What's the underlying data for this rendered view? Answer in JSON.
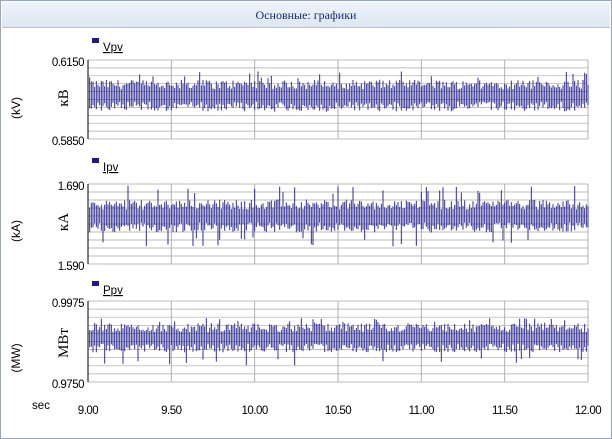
{
  "window": {
    "title": "Основные: графики"
  },
  "colors": {
    "series": "#1c1a8c",
    "grid": "#a9a9a9",
    "plot_bg": "#ffffff",
    "legend_square": "#1c1a8c"
  },
  "x_unit_label": "sec",
  "chart_data": [
    {
      "type": "line",
      "legend": "Vpv",
      "ylabel": "кВ",
      "unit": "(kV)",
      "ylim": [
        0.585,
        0.615
      ],
      "ytick_labels": [
        "0.6150",
        "0.5850"
      ],
      "xlim": [
        9.0,
        12.0
      ],
      "xtick_labels": [
        "9.00",
        "9.50",
        "10.00",
        "10.50",
        "11.00",
        "11.50",
        "12.00"
      ],
      "grid": true,
      "series": [
        {
          "name": "Vpv",
          "center": 0.6,
          "band": [
            0.5925,
            0.6075
          ],
          "min": 0.592,
          "max": 0.6115
        }
      ]
    },
    {
      "type": "line",
      "legend": "Ipv",
      "ylabel": "кА",
      "unit": "(kA)",
      "ylim": [
        1.59,
        1.69
      ],
      "ytick_labels": [
        "1.690",
        "1.590"
      ],
      "xlim": [
        9.0,
        12.0
      ],
      "xtick_labels": [
        "9.00",
        "9.50",
        "10.00",
        "10.50",
        "11.00",
        "11.50",
        "12.00"
      ],
      "grid": true,
      "series": [
        {
          "name": "Ipv",
          "center": 1.64,
          "band": [
            1.615,
            1.665
          ],
          "min": 1.594,
          "max": 1.688
        }
      ]
    },
    {
      "type": "line",
      "legend": "Ppv",
      "ylabel": "МВт",
      "unit": "(MW)",
      "ylim": [
        0.975,
        0.9975
      ],
      "ytick_labels": [
        "0.9975",
        "0.9750"
      ],
      "xlim": [
        9.0,
        12.0
      ],
      "xtick_labels": [
        "9.00",
        "9.50",
        "10.00",
        "10.50",
        "11.00",
        "11.50",
        "12.00"
      ],
      "grid": true,
      "series": [
        {
          "name": "Ppv",
          "center": 0.9863,
          "band": [
            0.981,
            0.9915
          ],
          "min": 0.976,
          "max": 0.9935
        }
      ]
    }
  ]
}
